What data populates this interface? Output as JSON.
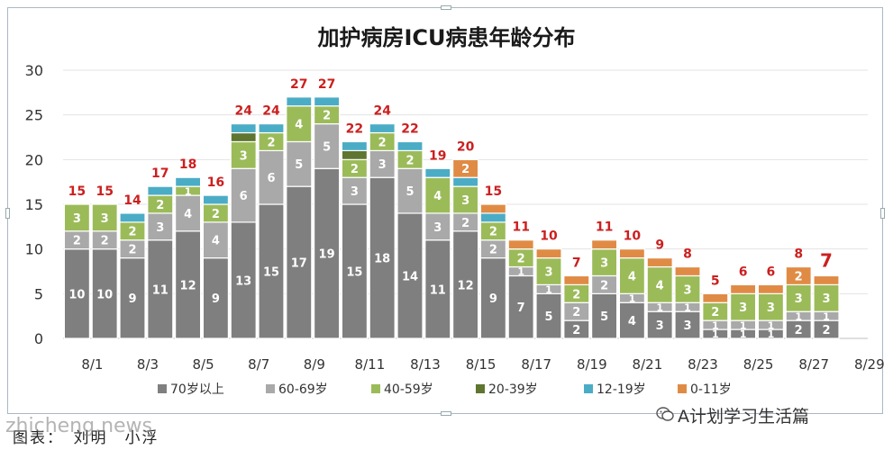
{
  "chart_data": {
    "type": "bar",
    "stacked": true,
    "title": "加护病房ICU病患年龄分布",
    "xlabel": "",
    "ylabel": "",
    "ylim": [
      0,
      30
    ],
    "yticks": [
      0,
      5,
      10,
      15,
      20,
      25,
      30
    ],
    "grid": true,
    "legend_position": "bottom",
    "categories": [
      "8/1",
      "8/2",
      "8/3",
      "8/4",
      "8/5",
      "8/6",
      "8/7",
      "8/8",
      "8/9",
      "8/10",
      "8/11",
      "8/12",
      "8/13",
      "8/14",
      "8/15",
      "8/16",
      "8/17",
      "8/18",
      "8/19",
      "8/20",
      "8/21",
      "8/22",
      "8/23",
      "8/24",
      "8/25",
      "8/26",
      "8/27",
      "8/28"
    ],
    "xtick_labels": [
      "8/1",
      "8/3",
      "8/5",
      "8/7",
      "8/9",
      "8/11",
      "8/13",
      "8/15",
      "8/17",
      "8/19",
      "8/21",
      "8/23",
      "8/25",
      "8/27",
      "8/29"
    ],
    "series": [
      {
        "name": "70岁以上",
        "color": "#7f7f7f",
        "label_color": "#ffffff",
        "values": [
          10,
          10,
          9,
          11,
          12,
          9,
          13,
          15,
          17,
          19,
          15,
          18,
          14,
          11,
          12,
          9,
          7,
          5,
          2,
          5,
          4,
          3,
          3,
          1,
          1,
          1,
          2,
          2
        ]
      },
      {
        "name": "60-69岁",
        "color": "#a9a9a9",
        "label_color": "#ffffff",
        "values": [
          2,
          2,
          2,
          3,
          4,
          4,
          6,
          6,
          5,
          5,
          3,
          3,
          5,
          3,
          2,
          2,
          1,
          1,
          2,
          2,
          1,
          1,
          1,
          1,
          1,
          1,
          1,
          1
        ]
      },
      {
        "name": "40-59岁",
        "color": "#9bbb59",
        "label_color": "#ffffff",
        "values": [
          3,
          3,
          2,
          2,
          1,
          2,
          3,
          2,
          4,
          2,
          2,
          2,
          2,
          4,
          3,
          2,
          2,
          3,
          2,
          3,
          4,
          4,
          3,
          2,
          3,
          3,
          3,
          3
        ]
      },
      {
        "name": "20-39岁",
        "color": "#5f7530",
        "label_color": "#ffffff",
        "values": [
          0,
          0,
          0,
          0,
          0,
          0,
          1,
          0,
          0,
          0,
          1,
          0,
          0,
          0,
          0,
          0,
          0,
          0,
          0,
          0,
          0,
          0,
          0,
          0,
          0,
          0,
          0,
          0
        ]
      },
      {
        "name": "12-19岁",
        "color": "#4bacc6",
        "label_color": "#ffffff",
        "values": [
          0,
          0,
          1,
          1,
          1,
          1,
          1,
          1,
          1,
          1,
          1,
          1,
          1,
          1,
          1,
          1,
          0,
          0,
          0,
          0,
          0,
          0,
          0,
          0,
          0,
          0,
          0,
          0
        ]
      },
      {
        "name": "0-11岁",
        "color": "#e08b45",
        "label_color": "#ffffff",
        "values": [
          0,
          0,
          0,
          0,
          0,
          0,
          0,
          0,
          0,
          0,
          0,
          0,
          0,
          0,
          2,
          1,
          1,
          1,
          1,
          1,
          1,
          1,
          1,
          1,
          1,
          1,
          2,
          1
        ]
      }
    ],
    "totals": [
      15,
      15,
      14,
      17,
      18,
      16,
      24,
      24,
      27,
      27,
      22,
      24,
      22,
      19,
      20,
      15,
      11,
      10,
      7,
      11,
      10,
      9,
      8,
      5,
      6,
      6,
      8,
      7
    ],
    "totals_color": "#cc1f1f"
  },
  "source": "图表：　刘明　小浮",
  "watermark_left": "zhicheng.news",
  "watermark_right": "A计划学习生活篇",
  "wechat_icon": "wechat-icon"
}
